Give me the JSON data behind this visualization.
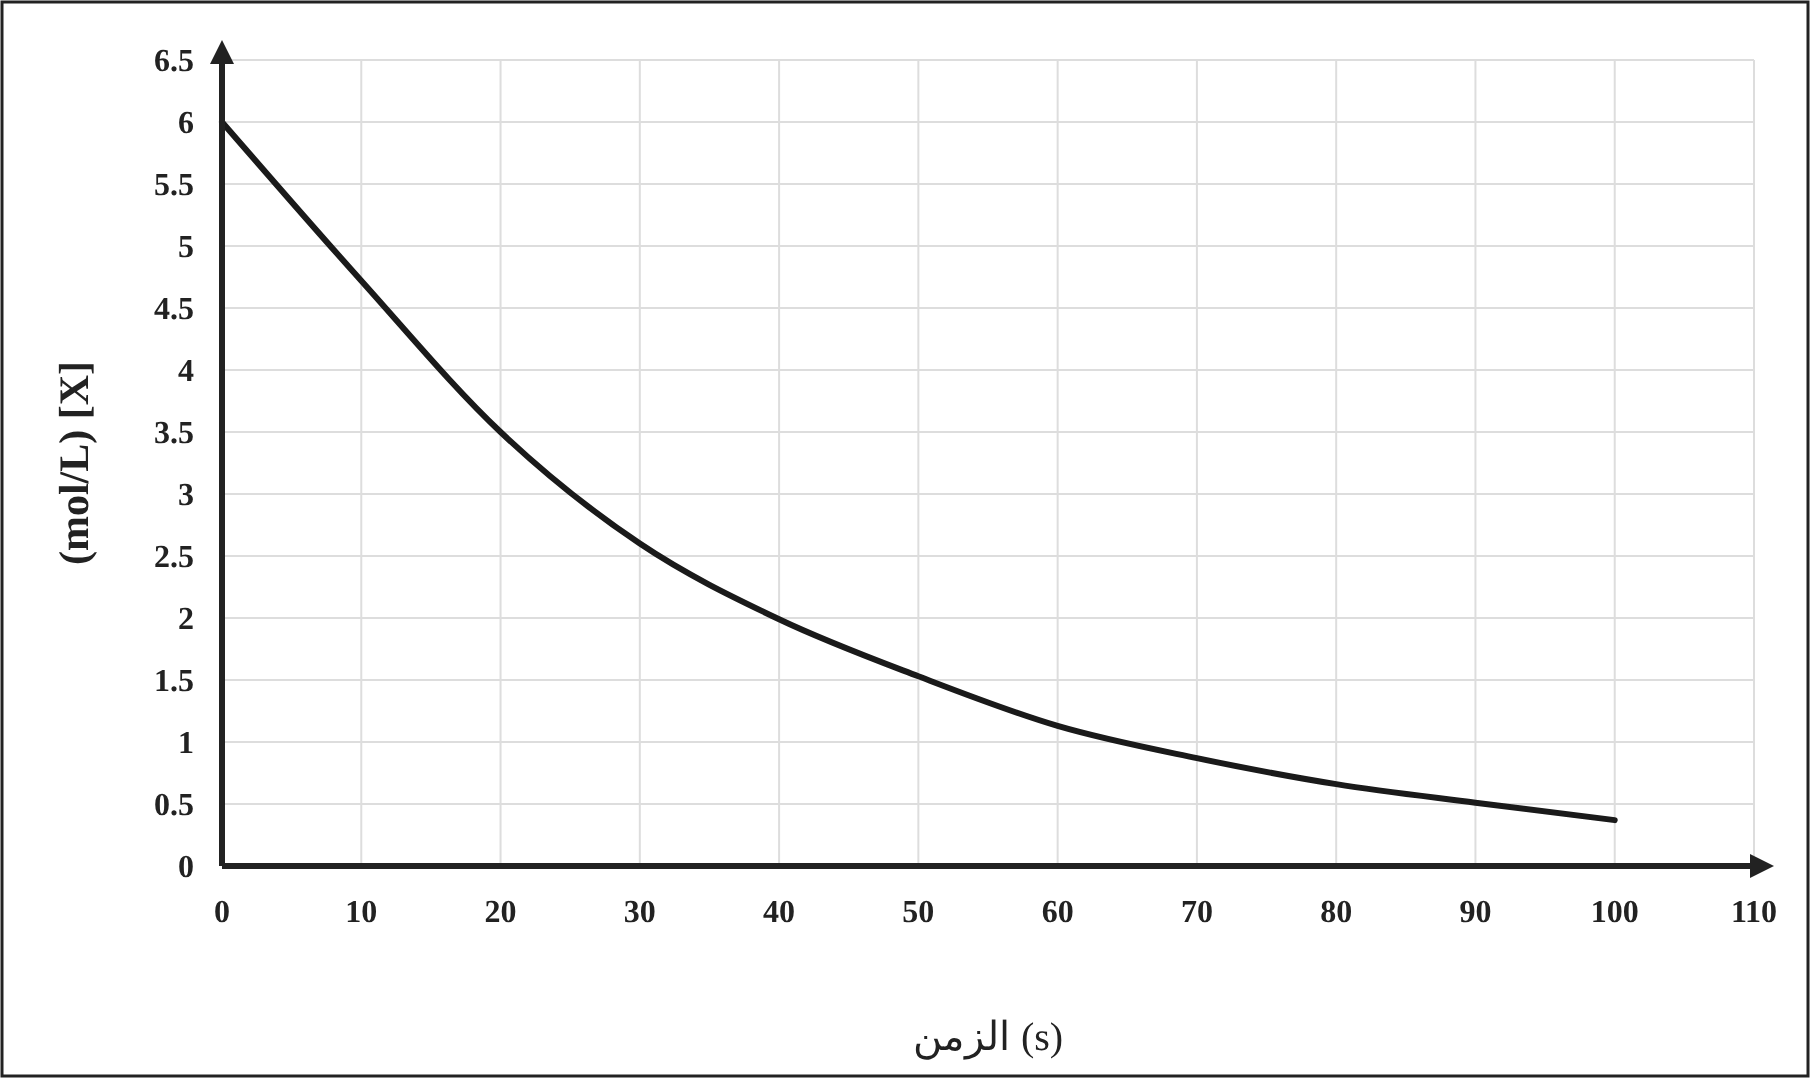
{
  "chart_data": {
    "type": "line",
    "xlabel": "الزمن (s)",
    "ylabel": "(mol/L) [X]",
    "x": [
      0,
      10,
      20,
      30,
      40,
      50,
      60,
      70,
      80,
      90,
      100
    ],
    "series": [
      {
        "color": "#1a1a1a",
        "values": [
          6.0,
          4.72,
          3.5,
          2.6,
          1.99,
          1.53,
          1.13,
          0.87,
          0.66,
          0.51,
          0.37
        ]
      }
    ],
    "xlim": [
      0,
      110
    ],
    "xticks": [
      0,
      10,
      20,
      30,
      40,
      50,
      60,
      70,
      80,
      90,
      100,
      110
    ],
    "ylim": [
      0,
      6.5
    ],
    "yticks": [
      0,
      0.5,
      1,
      1.5,
      2,
      2.5,
      3,
      3.5,
      4,
      4.5,
      5,
      5.5,
      6,
      6.5
    ],
    "grid": true,
    "marker": "none",
    "line_style": "solid"
  }
}
